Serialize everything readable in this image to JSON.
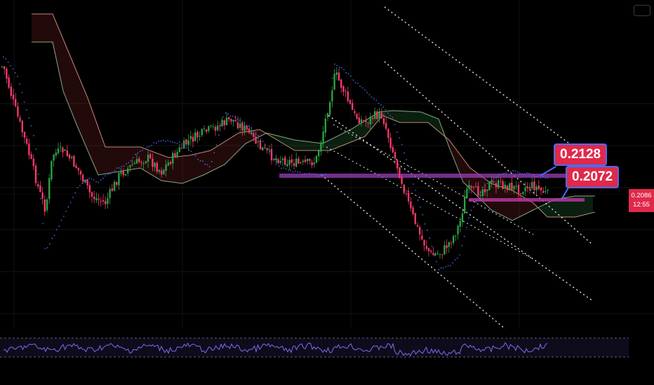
{
  "chart_data": {
    "type": "candlestick",
    "current_price": "0.2086",
    "countdown": "12:55",
    "annotations": [
      {
        "label": "0.2128"
      },
      {
        "label": "0.2072"
      }
    ],
    "indicators": [
      "Ichimoku Cloud",
      "Parabolic SAR",
      "Parallel Channel",
      "RSI"
    ],
    "colors": {
      "up": "#2ea043",
      "down": "#f23a6b",
      "sar": "#4a6cf7",
      "channel": "#ffffff",
      "callout": "#e0294a",
      "rsi": "#7b6cf0"
    }
  }
}
